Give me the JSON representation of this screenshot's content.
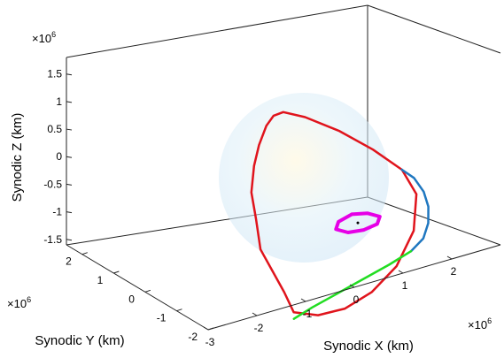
{
  "chart_data": {
    "type": "line3d",
    "title": "",
    "xlabel": "Synodic X (km)",
    "ylabel": "Synodic Y (km)",
    "zlabel": "Synodic Z (km)",
    "x_exponent": "×10",
    "x_exponent_power": "6",
    "y_exponent": "×10",
    "y_exponent_power": "6",
    "z_exponent": "×10",
    "z_exponent_power": "6",
    "xlim": [
      -3,
      3
    ],
    "ylim": [
      -2,
      2.5
    ],
    "zlim": [
      -1.6,
      1.8
    ],
    "x_ticks": [
      {
        "value": -3,
        "label": "-3"
      },
      {
        "value": -2,
        "label": "-2"
      },
      {
        "value": -1,
        "label": "-1"
      },
      {
        "value": 0,
        "label": "0"
      },
      {
        "value": 1,
        "label": "1"
      },
      {
        "value": 2,
        "label": "2"
      }
    ],
    "y_ticks": [
      {
        "value": -2,
        "label": "-2"
      },
      {
        "value": -1,
        "label": "-1"
      },
      {
        "value": 0,
        "label": "0"
      },
      {
        "value": 1,
        "label": "1"
      },
      {
        "value": 2,
        "label": "2"
      }
    ],
    "z_ticks": [
      {
        "value": 1.5,
        "label": "1.5"
      },
      {
        "value": 1,
        "label": "1"
      },
      {
        "value": 0.5,
        "label": "0.5"
      },
      {
        "value": 0,
        "label": "0"
      },
      {
        "value": -0.5,
        "label": "-0.5"
      },
      {
        "value": -1,
        "label": "-1"
      },
      {
        "value": -1.5,
        "label": "-1.5"
      }
    ],
    "grid": false,
    "box": true,
    "series": [
      {
        "color": "#e0141c",
        "description_style": "thick solid",
        "x": [
          -2.2,
          -1.7,
          -1.0,
          -0.3,
          0.4,
          1.0,
          1.3,
          1.2,
          0.8,
          0.3,
          -0.2,
          -0.5,
          -0.6,
          -0.7,
          -0.9,
          -1.1,
          -1.4,
          -1.6,
          -1.9,
          -2.0,
          -2.1,
          -2.2
        ],
        "y": [
          -1.8,
          -1.8,
          -1.5,
          -1.2,
          -0.8,
          -0.3,
          0.2,
          0.6,
          1.0,
          1.4,
          1.8,
          2.1,
          2.3,
          2.4,
          2.3,
          2.1,
          1.6,
          1.0,
          0.2,
          -0.5,
          -1.2,
          -1.8
        ],
        "z": [
          -1.2,
          -1.4,
          -1.55,
          -1.5,
          -1.3,
          -0.9,
          -0.4,
          0.0,
          0.4,
          0.8,
          1.1,
          1.2,
          1.1,
          0.9,
          0.6,
          0.3,
          0.0,
          -0.3,
          -0.6,
          -0.8,
          -1.0,
          -1.2
        ]
      },
      {
        "color": "#1f77c0",
        "description_style": "thick solid",
        "x": [
          1.2,
          1.35,
          1.4,
          1.35,
          1.2,
          0.95,
          0.6
        ],
        "y": [
          0.6,
          0.4,
          0.1,
          -0.2,
          -0.5,
          -0.8,
          -1.0
        ],
        "z": [
          0.0,
          -0.15,
          -0.35,
          -0.55,
          -0.75,
          -0.9,
          -1.0
        ]
      },
      {
        "color": "#22dd22",
        "description_style": "thick solid",
        "x": [
          0.6,
          0.1,
          -0.5,
          -1.1,
          -1.6,
          -2.0
        ],
        "y": [
          -1.0,
          -1.1,
          -1.2,
          -1.3,
          -1.35,
          -1.4
        ],
        "z": [
          -1.0,
          -1.1,
          -1.2,
          -1.3,
          -1.4,
          -1.5
        ]
      },
      {
        "color": "#e600e6",
        "description_style": "very thick closed halo orbit",
        "x": [
          0.0,
          0.3,
          0.45,
          0.3,
          0.0,
          -0.3,
          -0.45,
          -0.3,
          0.0
        ],
        "y": [
          0.25,
          0.2,
          0.0,
          -0.2,
          -0.25,
          -0.2,
          0.0,
          0.2,
          0.25
        ],
        "z": [
          -0.45,
          -0.5,
          -0.55,
          -0.6,
          -0.62,
          -0.6,
          -0.55,
          -0.5,
          -0.45
        ]
      }
    ],
    "center_marker": {
      "x": 0.0,
      "y": 0.0,
      "z": -0.55,
      "color": "#000000"
    },
    "sphere": {
      "center": [
        0.0,
        0.0,
        -0.55
      ],
      "radius_label": "",
      "colors": [
        "#fff6d8",
        "#dff0f8",
        "#cfe6f6"
      ],
      "opacity": 0.55
    }
  }
}
